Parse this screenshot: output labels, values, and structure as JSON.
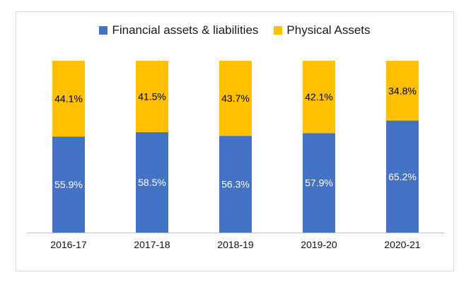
{
  "chart_data": {
    "type": "bar",
    "stacked": true,
    "categories": [
      "2016-17",
      "2017-18",
      "2018-19",
      "2019-20",
      "2020-21"
    ],
    "series": [
      {
        "name": "Financial assets & liabilities",
        "color": "#4472C4",
        "label_color": "#ffffff",
        "values": [
          55.9,
          58.5,
          56.3,
          57.9,
          65.2
        ],
        "labels": [
          "55.9%",
          "58.5%",
          "56.3%",
          "57.9%",
          "65.2%"
        ]
      },
      {
        "name": "Physical Assets",
        "color": "#FFC000",
        "label_color": "#000000",
        "values": [
          44.1,
          41.5,
          43.7,
          42.1,
          34.8
        ],
        "labels": [
          "44.1%",
          "41.5%",
          "43.7%",
          "42.1%",
          "34.8%"
        ]
      }
    ],
    "ylim": [
      0,
      100
    ],
    "grid": false,
    "legend_position": "top"
  }
}
